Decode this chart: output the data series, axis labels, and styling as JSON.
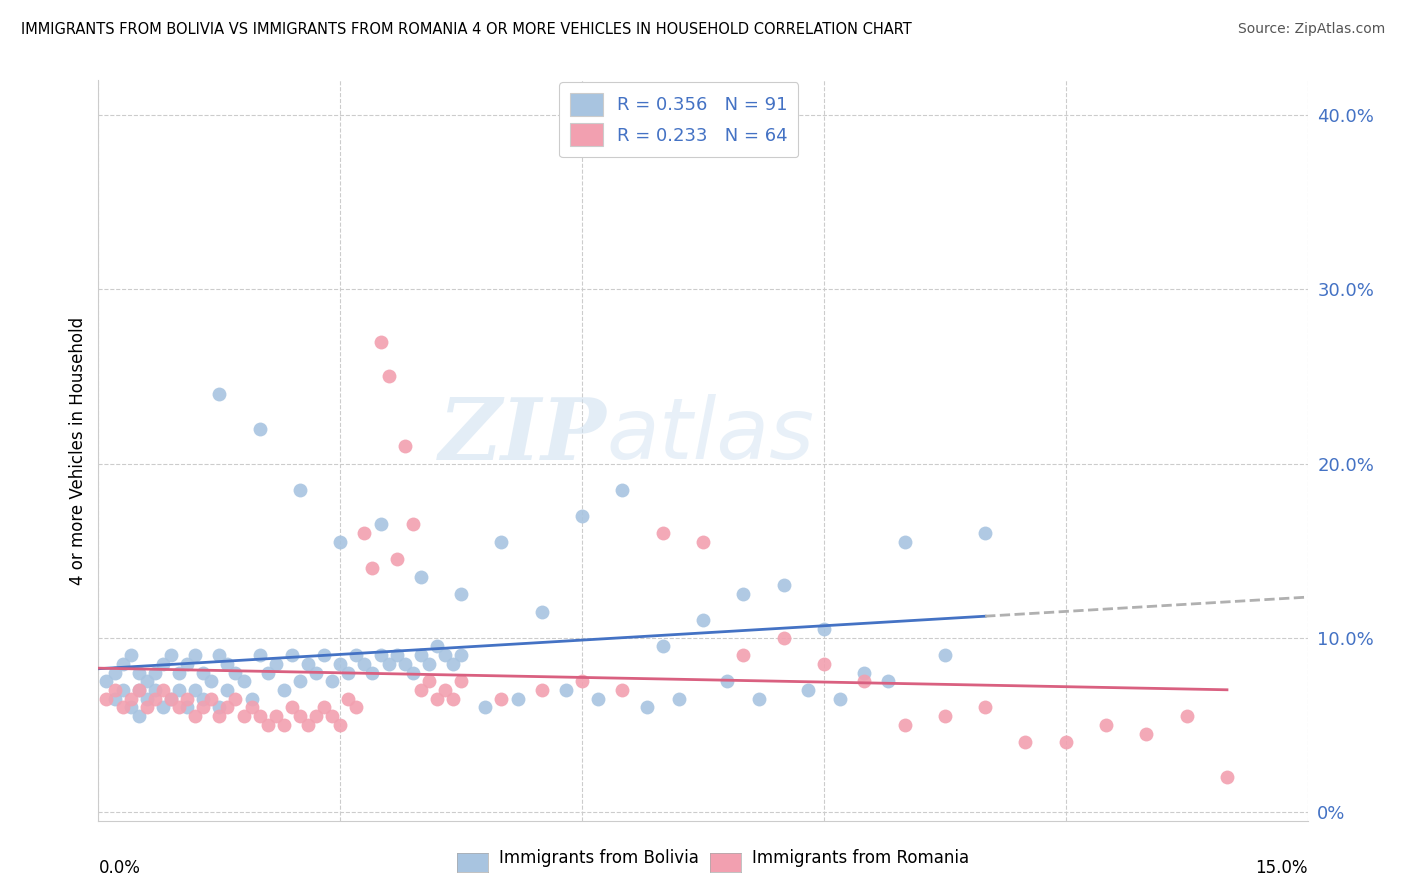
{
  "title": "IMMIGRANTS FROM BOLIVIA VS IMMIGRANTS FROM ROMANIA 4 OR MORE VEHICLES IN HOUSEHOLD CORRELATION CHART",
  "source": "Source: ZipAtlas.com",
  "ylabel": "4 or more Vehicles in Household",
  "xmin": 0.0,
  "xmax": 0.15,
  "ymin": -0.005,
  "ymax": 0.42,
  "bolivia_color": "#a8c4e0",
  "romania_color": "#f2a0b0",
  "bolivia_R": 0.356,
  "bolivia_N": 91,
  "romania_R": 0.233,
  "romania_N": 64,
  "bolivia_line_color": "#4472c4",
  "romania_line_color": "#d96080",
  "dashed_line_color": "#b0b0b0",
  "watermark_zip": "ZIP",
  "watermark_atlas": "atlas",
  "bolivia_x": [
    0.001,
    0.002,
    0.002,
    0.003,
    0.003,
    0.004,
    0.004,
    0.005,
    0.005,
    0.005,
    0.006,
    0.006,
    0.007,
    0.007,
    0.008,
    0.008,
    0.009,
    0.009,
    0.01,
    0.01,
    0.011,
    0.011,
    0.012,
    0.012,
    0.013,
    0.013,
    0.014,
    0.015,
    0.015,
    0.016,
    0.016,
    0.017,
    0.018,
    0.019,
    0.02,
    0.021,
    0.022,
    0.023,
    0.024,
    0.025,
    0.026,
    0.027,
    0.028,
    0.029,
    0.03,
    0.031,
    0.032,
    0.033,
    0.034,
    0.035,
    0.036,
    0.037,
    0.038,
    0.039,
    0.04,
    0.041,
    0.042,
    0.043,
    0.044,
    0.045,
    0.015,
    0.02,
    0.025,
    0.03,
    0.035,
    0.04,
    0.045,
    0.05,
    0.055,
    0.06,
    0.065,
    0.07,
    0.075,
    0.08,
    0.085,
    0.09,
    0.095,
    0.1,
    0.105,
    0.11,
    0.048,
    0.052,
    0.058,
    0.062,
    0.068,
    0.072,
    0.078,
    0.082,
    0.088,
    0.092,
    0.098
  ],
  "bolivia_y": [
    0.075,
    0.08,
    0.065,
    0.07,
    0.085,
    0.06,
    0.09,
    0.055,
    0.08,
    0.07,
    0.075,
    0.065,
    0.08,
    0.07,
    0.085,
    0.06,
    0.09,
    0.065,
    0.08,
    0.07,
    0.085,
    0.06,
    0.09,
    0.07,
    0.08,
    0.065,
    0.075,
    0.09,
    0.06,
    0.085,
    0.07,
    0.08,
    0.075,
    0.065,
    0.09,
    0.08,
    0.085,
    0.07,
    0.09,
    0.075,
    0.085,
    0.08,
    0.09,
    0.075,
    0.085,
    0.08,
    0.09,
    0.085,
    0.08,
    0.09,
    0.085,
    0.09,
    0.085,
    0.08,
    0.09,
    0.085,
    0.095,
    0.09,
    0.085,
    0.09,
    0.24,
    0.22,
    0.185,
    0.155,
    0.165,
    0.135,
    0.125,
    0.155,
    0.115,
    0.17,
    0.185,
    0.095,
    0.11,
    0.125,
    0.13,
    0.105,
    0.08,
    0.155,
    0.09,
    0.16,
    0.06,
    0.065,
    0.07,
    0.065,
    0.06,
    0.065,
    0.075,
    0.065,
    0.07,
    0.065,
    0.075
  ],
  "romania_x": [
    0.001,
    0.002,
    0.003,
    0.004,
    0.005,
    0.006,
    0.007,
    0.008,
    0.009,
    0.01,
    0.011,
    0.012,
    0.013,
    0.014,
    0.015,
    0.016,
    0.017,
    0.018,
    0.019,
    0.02,
    0.021,
    0.022,
    0.023,
    0.024,
    0.025,
    0.026,
    0.027,
    0.028,
    0.029,
    0.03,
    0.031,
    0.032,
    0.033,
    0.034,
    0.035,
    0.036,
    0.037,
    0.038,
    0.039,
    0.04,
    0.041,
    0.042,
    0.043,
    0.044,
    0.045,
    0.05,
    0.055,
    0.06,
    0.065,
    0.07,
    0.075,
    0.08,
    0.085,
    0.09,
    0.095,
    0.1,
    0.105,
    0.11,
    0.115,
    0.12,
    0.125,
    0.13,
    0.135,
    0.14
  ],
  "romania_y": [
    0.065,
    0.07,
    0.06,
    0.065,
    0.07,
    0.06,
    0.065,
    0.07,
    0.065,
    0.06,
    0.065,
    0.055,
    0.06,
    0.065,
    0.055,
    0.06,
    0.065,
    0.055,
    0.06,
    0.055,
    0.05,
    0.055,
    0.05,
    0.06,
    0.055,
    0.05,
    0.055,
    0.06,
    0.055,
    0.05,
    0.065,
    0.06,
    0.16,
    0.14,
    0.27,
    0.25,
    0.145,
    0.21,
    0.165,
    0.07,
    0.075,
    0.065,
    0.07,
    0.065,
    0.075,
    0.065,
    0.07,
    0.075,
    0.07,
    0.16,
    0.155,
    0.09,
    0.1,
    0.085,
    0.075,
    0.05,
    0.055,
    0.06,
    0.04,
    0.04,
    0.05,
    0.045,
    0.055,
    0.02
  ]
}
